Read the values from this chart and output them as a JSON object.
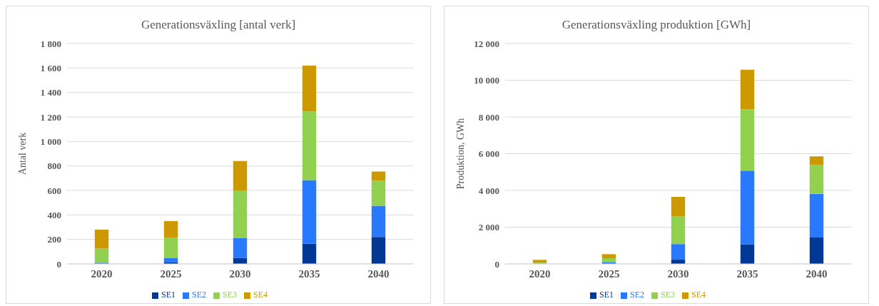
{
  "chart_data": [
    {
      "type": "bar",
      "title": "Generationsväxling  [antal verk]",
      "ylabel": "Antal verk",
      "categories": [
        "2020",
        "2025",
        "2030",
        "2035",
        "2040"
      ],
      "stacked": true,
      "grid": "y",
      "legend": "bottom",
      "ylim": [
        0,
        1800
      ],
      "yticks": [
        0,
        200,
        400,
        600,
        800,
        {
          "value": 1000,
          "label": "1 000"
        },
        {
          "value": 1200,
          "label": "1 200"
        },
        {
          "value": 1400,
          "label": "1 400"
        },
        {
          "value": 1600,
          "label": "1 600"
        },
        {
          "value": 1800,
          "label": "1 800"
        }
      ],
      "series": [
        {
          "name": "SE1",
          "color": "#003896",
          "values": [
            0,
            15,
            50,
            165,
            220
          ]
        },
        {
          "name": "SE2",
          "color": "#2979ff",
          "values": [
            10,
            35,
            160,
            520,
            255
          ]
        },
        {
          "name": "SE3",
          "color": "#92d050",
          "values": [
            115,
            165,
            390,
            560,
            205
          ]
        },
        {
          "name": "SE4",
          "color": "#cc9900",
          "values": [
            155,
            135,
            240,
            375,
            75
          ]
        }
      ]
    },
    {
      "type": "bar",
      "title": "Generationsväxling  produktion  [GWh]",
      "ylabel": "Produktion, GWh",
      "categories": [
        "2020",
        "2025",
        "2030",
        "2035",
        "2040"
      ],
      "stacked": true,
      "grid": "y",
      "legend": "bottom",
      "ylim": [
        0,
        12000
      ],
      "yticks": [
        0,
        {
          "value": 2000,
          "label": "2 000"
        },
        {
          "value": 4000,
          "label": "4 000"
        },
        {
          "value": 6000,
          "label": "6 000"
        },
        {
          "value": 8000,
          "label": "8 000"
        },
        {
          "value": 10000,
          "label": "10 000"
        },
        {
          "value": 12000,
          "label": "12 000"
        }
      ],
      "series": [
        {
          "name": "SE1",
          "color": "#003896",
          "values": [
            0,
            null,
            230,
            1070,
            1440
          ]
        },
        {
          "name": "SE2",
          "color": "#2979ff",
          "values": [
            null,
            100,
            850,
            4010,
            2380
          ]
        },
        {
          "name": "SE3",
          "color": "#92d050",
          "values": [
            70,
            210,
            1520,
            3340,
            1560
          ]
        },
        {
          "name": "SE4",
          "color": "#cc9900",
          "values": [
            150,
            220,
            1050,
            2150,
            470
          ]
        }
      ]
    }
  ]
}
